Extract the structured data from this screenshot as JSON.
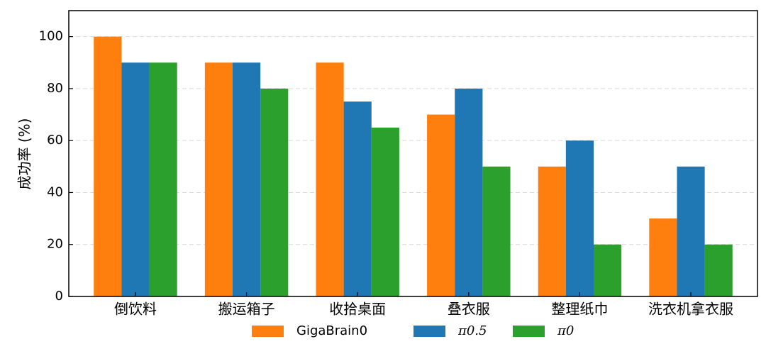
{
  "chart_data": {
    "type": "bar",
    "y_label": "成功率 (%)",
    "categories": [
      "倒饮料",
      "搬运箱子",
      "收拾桌面",
      "叠衣服",
      "整理纸巾",
      "洗衣机拿衣服"
    ],
    "series": [
      {
        "name": "GigaBrain0",
        "color": "#ff7f0e",
        "values": [
          100,
          90,
          90,
          70,
          50,
          30
        ]
      },
      {
        "name": "π0.5",
        "color": "#1f77b4",
        "values": [
          90,
          90,
          75,
          80,
          60,
          50
        ]
      },
      {
        "name": "π0",
        "color": "#2ca02c",
        "values": [
          90,
          80,
          65,
          50,
          20,
          20
        ]
      }
    ],
    "ylim": [
      0,
      110
    ],
    "yticks": [
      0,
      20,
      40,
      60,
      80,
      100
    ],
    "grid": true,
    "legend": "bottom"
  }
}
